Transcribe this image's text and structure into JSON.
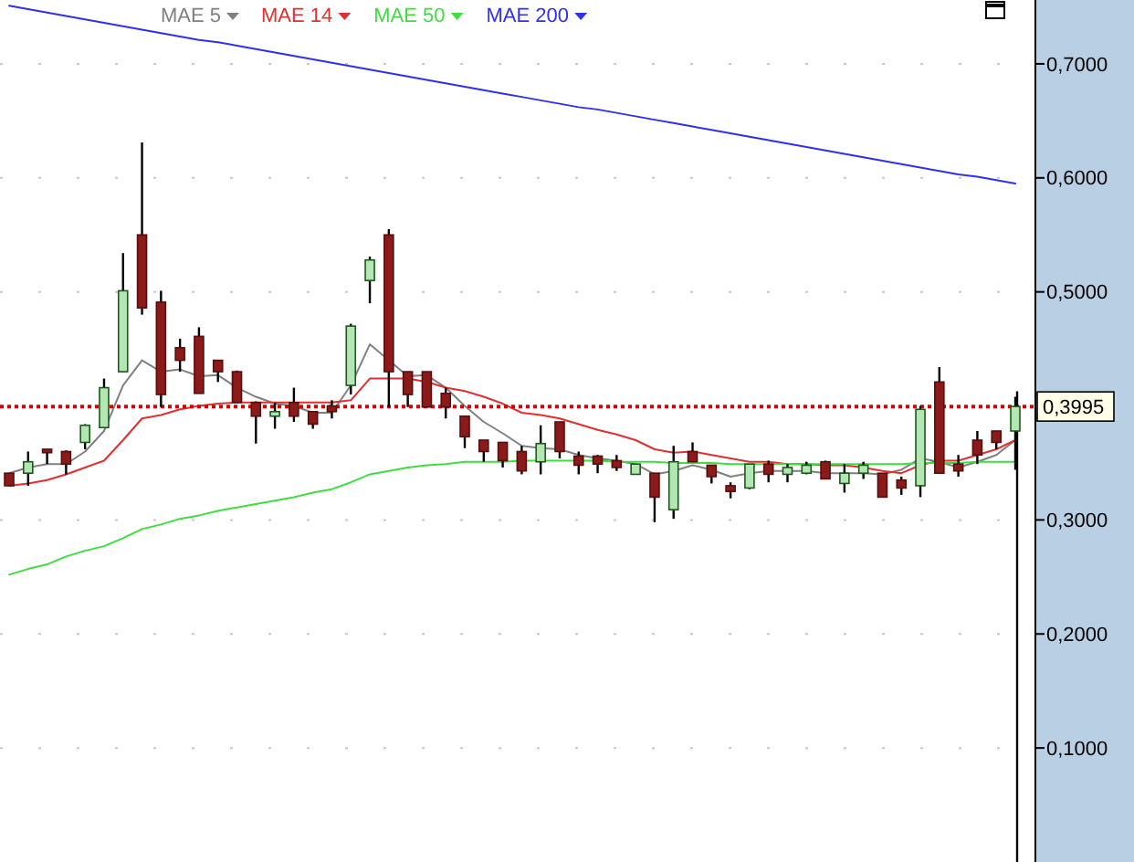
{
  "chart_data": {
    "type": "candlestick",
    "categories": [
      null,
      null,
      null,
      null,
      null,
      null,
      null,
      null,
      null,
      null,
      null,
      null,
      null,
      null,
      null,
      null,
      null,
      null,
      null,
      null,
      null,
      null,
      null,
      null,
      null,
      null,
      null,
      null,
      null,
      null,
      null,
      null,
      null,
      null,
      null,
      null,
      null,
      null,
      null,
      null,
      null,
      null,
      null,
      null,
      null,
      null,
      null,
      null,
      null,
      null,
      null,
      null,
      null,
      null
    ],
    "ohlc": [
      [
        0.341,
        0.341,
        0.33,
        0.33
      ],
      [
        0.341,
        0.36,
        0.33,
        0.351
      ],
      [
        0.362,
        0.362,
        0.349,
        0.359
      ],
      [
        0.36,
        0.361,
        0.34,
        0.349
      ],
      [
        0.368,
        0.384,
        0.362,
        0.383
      ],
      [
        0.381,
        0.424,
        0.381,
        0.416
      ],
      [
        0.43,
        0.534,
        0.43,
        0.501
      ],
      [
        0.55,
        0.631,
        0.48,
        0.486
      ],
      [
        0.491,
        0.501,
        0.399,
        0.41
      ],
      [
        0.451,
        0.459,
        0.43,
        0.44
      ],
      [
        0.461,
        0.469,
        0.411,
        0.411
      ],
      [
        0.44,
        0.44,
        0.421,
        0.43
      ],
      [
        0.43,
        0.431,
        0.403,
        0.403
      ],
      [
        0.403,
        0.404,
        0.367,
        0.391
      ],
      [
        0.391,
        0.403,
        0.38,
        0.395
      ],
      [
        0.403,
        0.416,
        0.386,
        0.391
      ],
      [
        0.395,
        0.395,
        0.38,
        0.384
      ],
      [
        0.4,
        0.405,
        0.389,
        0.395
      ],
      [
        0.418,
        0.472,
        0.41,
        0.47
      ],
      [
        0.51,
        0.531,
        0.49,
        0.528
      ],
      [
        0.55,
        0.555,
        0.399,
        0.43
      ],
      [
        0.43,
        0.43,
        0.399,
        0.41
      ],
      [
        0.43,
        0.43,
        0.399,
        0.399
      ],
      [
        0.411,
        0.416,
        0.389,
        0.399
      ],
      [
        0.391,
        0.391,
        0.363,
        0.373
      ],
      [
        0.37,
        0.37,
        0.351,
        0.36
      ],
      [
        0.368,
        0.368,
        0.346,
        0.352
      ],
      [
        0.36,
        0.365,
        0.34,
        0.343
      ],
      [
        0.351,
        0.383,
        0.34,
        0.367
      ],
      [
        0.386,
        0.386,
        0.354,
        0.36
      ],
      [
        0.356,
        0.36,
        0.34,
        0.348
      ],
      [
        0.356,
        0.357,
        0.341,
        0.349
      ],
      [
        0.352,
        0.357,
        0.343,
        0.346
      ],
      [
        0.34,
        0.349,
        0.34,
        0.349
      ],
      [
        0.341,
        0.341,
        0.298,
        0.32
      ],
      [
        0.309,
        0.365,
        0.301,
        0.351
      ],
      [
        0.36,
        0.368,
        0.351,
        0.351
      ],
      [
        0.348,
        0.348,
        0.332,
        0.338
      ],
      [
        0.33,
        0.333,
        0.319,
        0.325
      ],
      [
        0.328,
        0.349,
        0.327,
        0.349
      ],
      [
        0.349,
        0.352,
        0.333,
        0.34
      ],
      [
        0.34,
        0.349,
        0.333,
        0.346
      ],
      [
        0.341,
        0.351,
        0.34,
        0.348
      ],
      [
        0.351,
        0.352,
        0.336,
        0.336
      ],
      [
        0.332,
        0.349,
        0.324,
        0.341
      ],
      [
        0.341,
        0.351,
        0.336,
        0.348
      ],
      [
        0.341,
        0.341,
        0.32,
        0.32
      ],
      [
        0.335,
        0.338,
        0.322,
        0.328
      ],
      [
        0.33,
        0.4,
        0.32,
        0.397
      ],
      [
        0.421,
        0.434,
        0.341,
        0.341
      ],
      [
        0.349,
        0.357,
        0.338,
        0.343
      ],
      [
        0.37,
        0.378,
        0.349,
        0.357
      ],
      [
        0.378,
        0.378,
        0.362,
        0.368
      ],
      [
        0.378,
        0.408,
        0.344,
        0.3995
      ]
    ],
    "series": [
      {
        "name": "MAE 5",
        "type": "line",
        "color": "#808080",
        "values": [
          0.341,
          0.346,
          0.349,
          0.349,
          0.36,
          0.378,
          0.418,
          0.44,
          0.43,
          0.432,
          0.426,
          0.427,
          0.416,
          0.408,
          0.402,
          0.4,
          0.394,
          0.394,
          0.418,
          0.454,
          0.44,
          0.426,
          0.427,
          0.416,
          0.4,
          0.386,
          0.376,
          0.365,
          0.363,
          0.362,
          0.357,
          0.354,
          0.352,
          0.349,
          0.34,
          0.343,
          0.348,
          0.344,
          0.338,
          0.341,
          0.343,
          0.343,
          0.343,
          0.341,
          0.341,
          0.341,
          0.34,
          0.344,
          0.354,
          0.351,
          0.346,
          0.351,
          0.357,
          0.37
        ]
      },
      {
        "name": "MAE 14",
        "type": "line",
        "color": "#e03030",
        "values": [
          0.33,
          0.332,
          0.335,
          0.34,
          0.346,
          0.352,
          0.37,
          0.389,
          0.392,
          0.397,
          0.4,
          0.402,
          0.403,
          0.403,
          0.403,
          0.403,
          0.403,
          0.403,
          0.405,
          0.424,
          0.424,
          0.424,
          0.421,
          0.416,
          0.413,
          0.408,
          0.402,
          0.394,
          0.392,
          0.389,
          0.384,
          0.379,
          0.375,
          0.37,
          0.362,
          0.359,
          0.36,
          0.357,
          0.354,
          0.351,
          0.351,
          0.349,
          0.349,
          0.348,
          0.348,
          0.346,
          0.343,
          0.341,
          0.348,
          0.352,
          0.352,
          0.357,
          0.362,
          0.37
        ]
      },
      {
        "name": "MAE 50",
        "type": "line",
        "color": "#40dd40",
        "values": [
          0.252,
          0.257,
          0.261,
          0.268,
          0.273,
          0.277,
          0.284,
          0.292,
          0.296,
          0.301,
          0.304,
          0.308,
          0.311,
          0.314,
          0.317,
          0.32,
          0.324,
          0.327,
          0.333,
          0.34,
          0.343,
          0.346,
          0.348,
          0.349,
          0.351,
          0.351,
          0.351,
          0.352,
          0.352,
          0.352,
          0.352,
          0.352,
          0.351,
          0.351,
          0.351,
          0.35,
          0.35,
          0.35,
          0.349,
          0.349,
          0.349,
          0.349,
          0.349,
          0.349,
          0.349,
          0.349,
          0.349,
          0.349,
          0.35,
          0.35,
          0.35,
          0.351,
          0.351,
          0.351
        ]
      },
      {
        "name": "MAE 200",
        "type": "line",
        "color": "#3030ee",
        "values": [
          0.751,
          0.748,
          0.745,
          0.742,
          0.739,
          0.736,
          0.733,
          0.73,
          0.727,
          0.724,
          0.721,
          0.719,
          0.716,
          0.713,
          0.71,
          0.707,
          0.704,
          0.701,
          0.698,
          0.695,
          0.692,
          0.689,
          0.686,
          0.683,
          0.68,
          0.677,
          0.674,
          0.671,
          0.668,
          0.665,
          0.662,
          0.66,
          0.657,
          0.654,
          0.651,
          0.648,
          0.645,
          0.642,
          0.639,
          0.636,
          0.633,
          0.63,
          0.627,
          0.624,
          0.621,
          0.618,
          0.615,
          0.612,
          0.609,
          0.606,
          0.603,
          0.601,
          0.598,
          0.595
        ]
      }
    ],
    "ylim": [
      0,
      0.756
    ],
    "yticks": [
      {
        "value": 0.1,
        "label": "0,1000"
      },
      {
        "value": 0.2,
        "label": "0,2000"
      },
      {
        "value": 0.3,
        "label": "0,3000"
      },
      {
        "value": 0.5,
        "label": "0,5000"
      },
      {
        "value": 0.6,
        "label": "0,6000"
      },
      {
        "value": 0.7,
        "label": "0,7000"
      }
    ],
    "ref_lines": [
      {
        "axis": "y",
        "value": 0.3995,
        "label": "0,3995",
        "color": "#dd0000",
        "line_style": "dotted"
      }
    ],
    "grid": "y",
    "legend": "top left",
    "tick_labels": "y"
  }
}
